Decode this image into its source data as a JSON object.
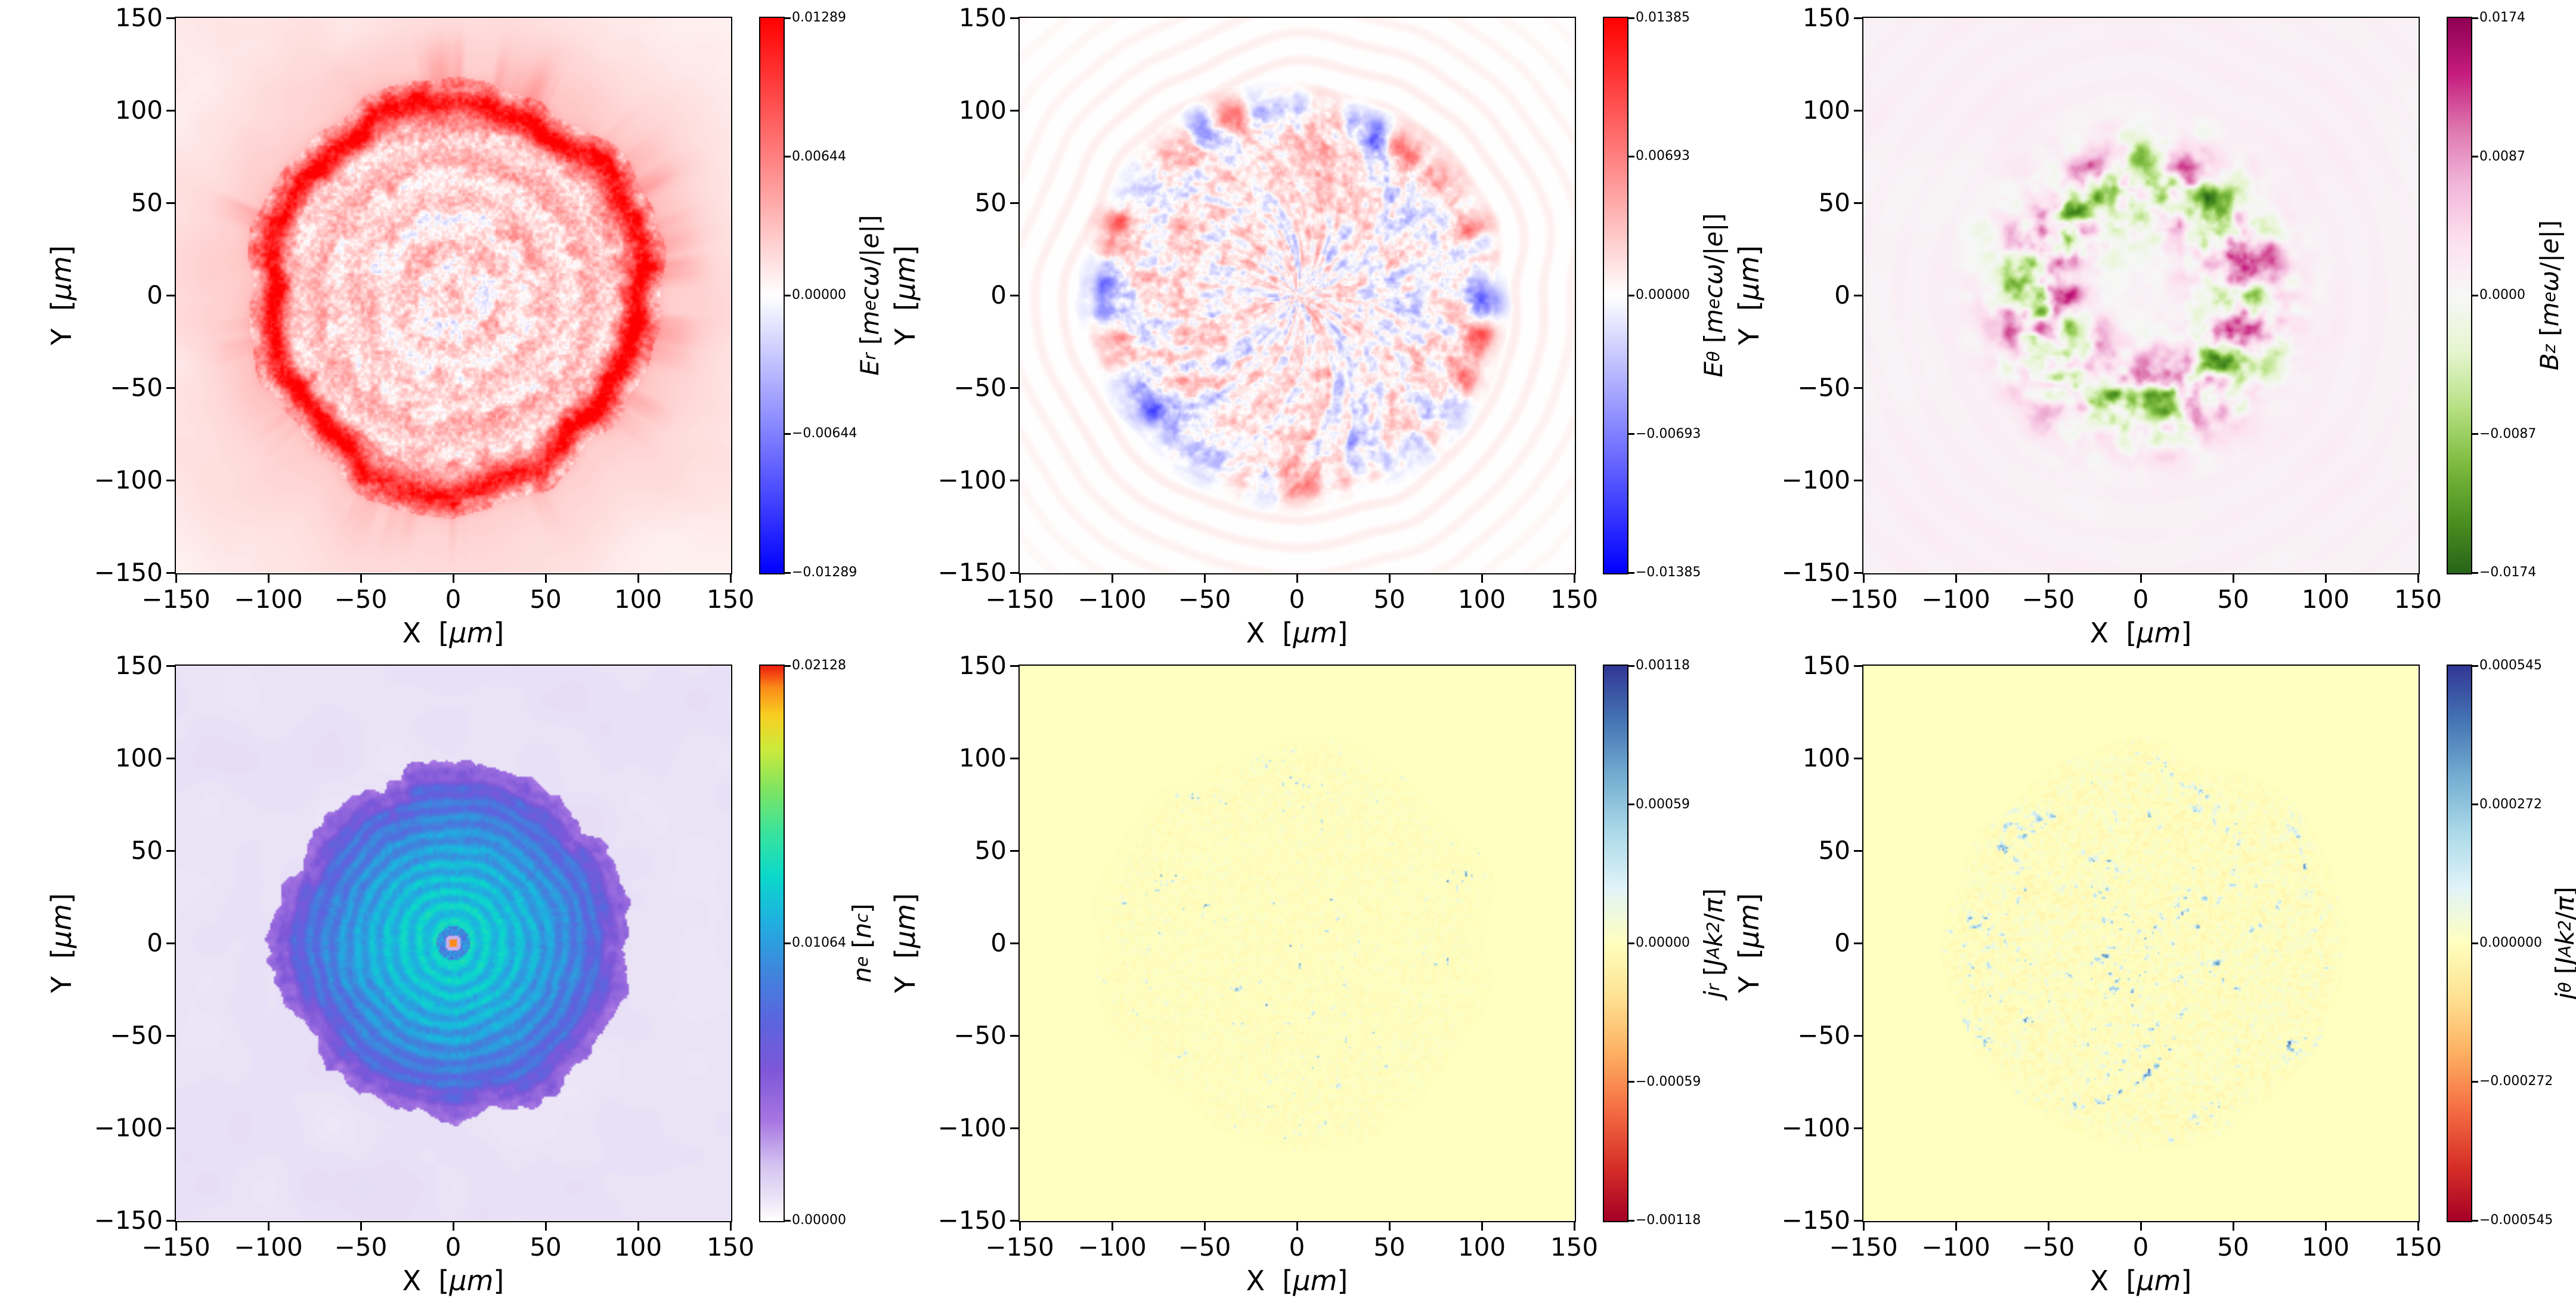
{
  "figure": {
    "background_color": "#ffffff",
    "kind": "2x3 grid of simulation field heatmaps"
  },
  "chart_data": {
    "type": "heatmap",
    "layout": {
      "rows": 2,
      "cols": 3,
      "grid": false,
      "legend": "colorbar-right-of-each-panel"
    },
    "x": {
      "label_text": "X  [μm]",
      "label_tokens": [
        [
          "n",
          "X  ["
        ],
        [
          "i",
          "μm"
        ],
        [
          "n",
          "]"
        ]
      ],
      "lim": [
        -150,
        150
      ],
      "ticks": [
        -150,
        -100,
        -50,
        0,
        50,
        100,
        150
      ],
      "tick_labels": [
        "−150",
        "−100",
        "−50",
        "0",
        "50",
        "100",
        "150"
      ]
    },
    "y": {
      "label_text": "Y  [μm]",
      "label_tokens": [
        [
          "n",
          "Y  ["
        ],
        [
          "i",
          "μm"
        ],
        [
          "n",
          "]"
        ]
      ],
      "lim": [
        -150,
        150
      ],
      "ticks": [
        -150,
        -100,
        -50,
        0,
        50,
        100,
        150
      ],
      "tick_labels": [
        "−150",
        "−100",
        "−50",
        "0",
        "50",
        "100",
        "150"
      ]
    },
    "panels": [
      {
        "id": "Er",
        "field": "Er",
        "quantity": "E_r",
        "label_text": "E_r [m_e cω/|e|]",
        "label_tokens": [
          [
            "i",
            "E"
          ],
          [
            "s",
            "r"
          ],
          [
            "n",
            " ["
          ],
          [
            "i",
            "m"
          ],
          [
            "s",
            "e"
          ],
          [
            "i",
            "cω"
          ],
          [
            "n",
            "/|"
          ],
          [
            "i",
            "e"
          ],
          [
            "n",
            "|]"
          ]
        ],
        "cmap": "bwr",
        "clim": [
          -0.01289,
          0.01289
        ],
        "cbar_ticks": [
          0.01289,
          0.00644,
          0.0,
          -0.00644,
          -0.01289
        ],
        "cbar_tick_labels": [
          "0.01289",
          "0.00644",
          "0.00000",
          "−0.00644",
          "−0.01289"
        ],
        "content": "Radial electric field: strong positive (red) spiky ring near r≈100 μm, fine red/blue turbulent speckle filling the disk, concentric faint rings, pale pink halo fading outward to the frame corners"
      },
      {
        "id": "Etheta",
        "field": "Et",
        "quantity": "E_θ",
        "label_text": "E_θ [m_e cω/|e|]",
        "label_tokens": [
          [
            "i",
            "E"
          ],
          [
            "s",
            "θ"
          ],
          [
            "n",
            " ["
          ],
          [
            "i",
            "m"
          ],
          [
            "s",
            "e"
          ],
          [
            "i",
            "cω"
          ],
          [
            "n",
            "/|"
          ],
          [
            "i",
            "e"
          ],
          [
            "n",
            "|]"
          ]
        ],
        "cmap": "bwr",
        "clim": [
          -0.01385,
          0.01385
        ],
        "cbar_ticks": [
          0.01385,
          0.00693,
          0.0,
          -0.00693,
          -0.01385
        ],
        "cbar_tick_labels": [
          "0.01385",
          "0.00693",
          "0.00000",
          "−0.00693",
          "−0.01385"
        ],
        "content": "Azimuthal electric field: fine bipolar red/blue filamentary turbulence inside r≈100 μm, strong alternating blobs on the rim, faint concentric pink ripples outside the disk on a white background"
      },
      {
        "id": "Bz",
        "field": "Bz",
        "quantity": "B_z",
        "label_text": "B_z [m_e ω/|e|]",
        "label_tokens": [
          [
            "i",
            "B"
          ],
          [
            "s",
            "z"
          ],
          [
            "n",
            " ["
          ],
          [
            "i",
            "m"
          ],
          [
            "s",
            "e"
          ],
          [
            "i",
            "ω"
          ],
          [
            "n",
            "/|"
          ],
          [
            "i",
            "e"
          ],
          [
            "n",
            "|]"
          ]
        ],
        "cmap": "piyg_r",
        "clim": [
          -0.0174,
          0.0174
        ],
        "cbar_ticks": [
          0.0174,
          0.0087,
          0.0,
          -0.0087,
          -0.0174
        ],
        "cbar_tick_labels": [
          "0.0174",
          "0.0087",
          "0.0000",
          "−0.0087",
          "−0.0174"
        ],
        "content": "Axial magnetic field: ring of alternating magenta (positive) and green (negative) patches between r≈30–85 μm on a very pale pink background"
      },
      {
        "id": "ne",
        "field": "ne",
        "quantity": "n_e",
        "label_text": "n_e [n_c]",
        "label_tokens": [
          [
            "i",
            "n"
          ],
          [
            "s",
            "e"
          ],
          [
            "n",
            " ["
          ],
          [
            "i",
            "n"
          ],
          [
            "s",
            "c"
          ],
          [
            "n",
            "]"
          ]
        ],
        "cmap": "ne",
        "clim": [
          0.0,
          0.02128
        ],
        "cbar_ticks": [
          0.02128,
          0.01064,
          0.0
        ],
        "cbar_tick_labels": [
          "0.02128",
          "0.01064",
          "0.00000"
        ],
        "content": "Electron density: circular plasma column with spiky purple finger-like edge near r≈100 μm, indigo-blue ring, cyan–green core with concentric ripples, and a tiny dense orange spot at the origin on a pale lavender background"
      },
      {
        "id": "jr",
        "field": "jr",
        "quantity": "j_r",
        "label_text": "j_r [J_A k²/π]",
        "label_tokens": [
          [
            "i",
            "j"
          ],
          [
            "s",
            "r"
          ],
          [
            "n",
            " ["
          ],
          [
            "i",
            "J"
          ],
          [
            "s",
            "A"
          ],
          [
            "i",
            "k"
          ],
          [
            "p",
            "2"
          ],
          [
            "n",
            "/"
          ],
          [
            "i",
            "π"
          ],
          [
            "n",
            "]"
          ]
        ],
        "cmap": "rdylbu",
        "clim": [
          -0.00118,
          0.00118
        ],
        "cbar_ticks": [
          0.00118,
          0.00059,
          0.0,
          -0.00059,
          -0.00118
        ],
        "cbar_tick_labels": [
          "0.00118",
          "0.00059",
          "0.00000",
          "−0.00059",
          "−0.00118"
        ],
        "content": "Radial current density: sparse faint blue filaments and speckle inside r≈110 μm on a uniform pale yellow (zero) background"
      },
      {
        "id": "jtheta",
        "field": "jt",
        "quantity": "j_θ",
        "label_text": "j_θ [J_A k²/π]",
        "label_tokens": [
          [
            "i",
            "j"
          ],
          [
            "s",
            "θ"
          ],
          [
            "n",
            " ["
          ],
          [
            "i",
            "J"
          ],
          [
            "s",
            "A"
          ],
          [
            "i",
            "k"
          ],
          [
            "p",
            "2"
          ],
          [
            "n",
            "/"
          ],
          [
            "i",
            "π"
          ],
          [
            "n",
            "]"
          ]
        ],
        "cmap": "rdylbu",
        "clim": [
          -0.000545,
          0.000545
        ],
        "cbar_ticks": [
          0.000545,
          0.000272,
          0.0,
          -0.000272,
          -0.000545
        ],
        "cbar_tick_labels": [
          "0.000545",
          "0.000272",
          "0.000000",
          "−0.000272",
          "−0.000545"
        ],
        "content": "Azimuthal current density: denser web of faint blue filaments inside r≈110 μm on a uniform pale yellow (zero) background"
      }
    ]
  },
  "colormaps": {
    "bwr": [
      [
        0.0,
        "#0000ff"
      ],
      [
        0.5,
        "#ffffff"
      ],
      [
        1.0,
        "#ff0000"
      ]
    ],
    "piyg_r": [
      [
        0.0,
        "#276419"
      ],
      [
        0.1,
        "#4d9221"
      ],
      [
        0.2,
        "#7fbc41"
      ],
      [
        0.3,
        "#b8e186"
      ],
      [
        0.4,
        "#e6f5d0"
      ],
      [
        0.5,
        "#f7f7f7"
      ],
      [
        0.6,
        "#fde0ef"
      ],
      [
        0.7,
        "#f1b6da"
      ],
      [
        0.8,
        "#de77ae"
      ],
      [
        0.9,
        "#c51b7d"
      ],
      [
        1.0,
        "#8e0152"
      ]
    ],
    "ne": [
      [
        0.0,
        "#ffffff"
      ],
      [
        0.03,
        "#efeaf8"
      ],
      [
        0.1,
        "#d4c3f0"
      ],
      [
        0.18,
        "#a876e2"
      ],
      [
        0.27,
        "#7e57d8"
      ],
      [
        0.36,
        "#5b64de"
      ],
      [
        0.45,
        "#3f86dd"
      ],
      [
        0.54,
        "#1fb0e0"
      ],
      [
        0.62,
        "#0bd8cb"
      ],
      [
        0.7,
        "#3ae39c"
      ],
      [
        0.78,
        "#82e45f"
      ],
      [
        0.85,
        "#cdea3b"
      ],
      [
        0.91,
        "#f7cf22"
      ],
      [
        0.96,
        "#fb8c19"
      ],
      [
        1.0,
        "#ef1c0c"
      ]
    ],
    "rdylbu": [
      [
        0.0,
        "#a50026"
      ],
      [
        0.1,
        "#d73027"
      ],
      [
        0.2,
        "#f46d43"
      ],
      [
        0.3,
        "#fdae61"
      ],
      [
        0.4,
        "#fee090"
      ],
      [
        0.5,
        "#ffffbf"
      ],
      [
        0.6,
        "#e0f3f8"
      ],
      [
        0.7,
        "#abd9e9"
      ],
      [
        0.8,
        "#74add1"
      ],
      [
        0.9,
        "#4575b4"
      ],
      [
        1.0,
        "#313695"
      ]
    ]
  }
}
